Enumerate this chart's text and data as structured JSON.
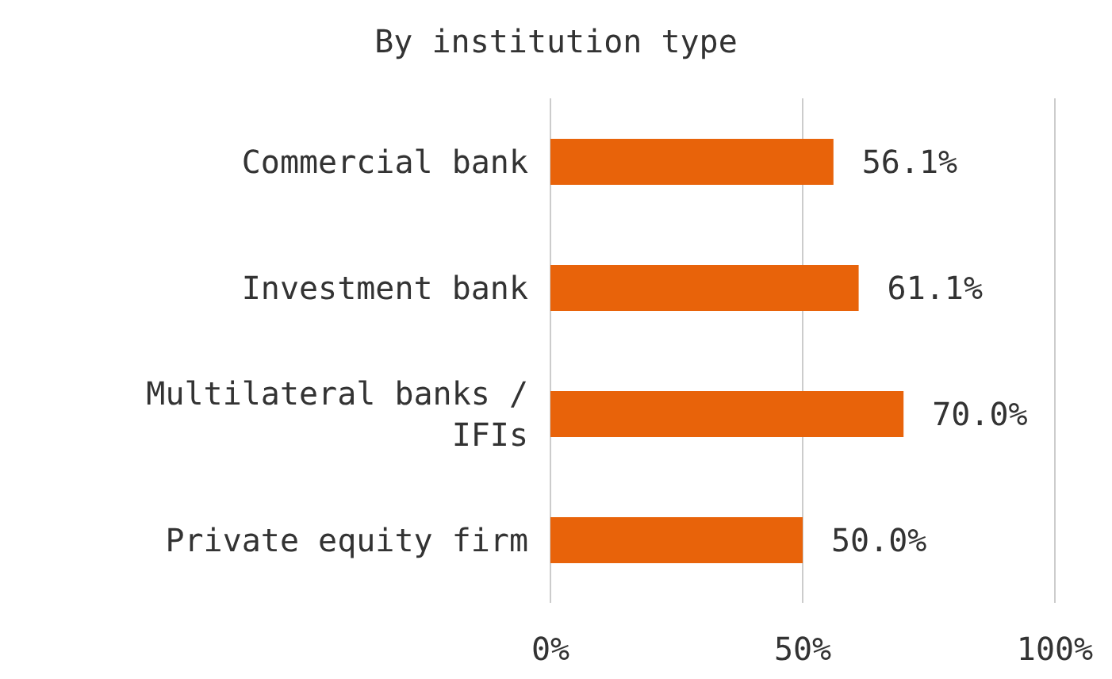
{
  "chart_data": {
    "type": "bar",
    "orientation": "horizontal",
    "title": "By institution type",
    "categories": [
      "Commercial bank",
      "Investment bank",
      "Multilateral banks / IFIs",
      "Private equity firm"
    ],
    "values": [
      56.1,
      61.1,
      70.0,
      50.0
    ],
    "value_labels": [
      "56.1%",
      "61.1%",
      "70.0%",
      "50.0%"
    ],
    "color": "#e8630a",
    "xlim": [
      0,
      100
    ],
    "xticks": [
      {
        "value": 0,
        "label": "0%"
      },
      {
        "value": 50,
        "label": "50%"
      },
      {
        "value": 100,
        "label": "100%"
      }
    ],
    "grid": "x",
    "legend": false
  }
}
